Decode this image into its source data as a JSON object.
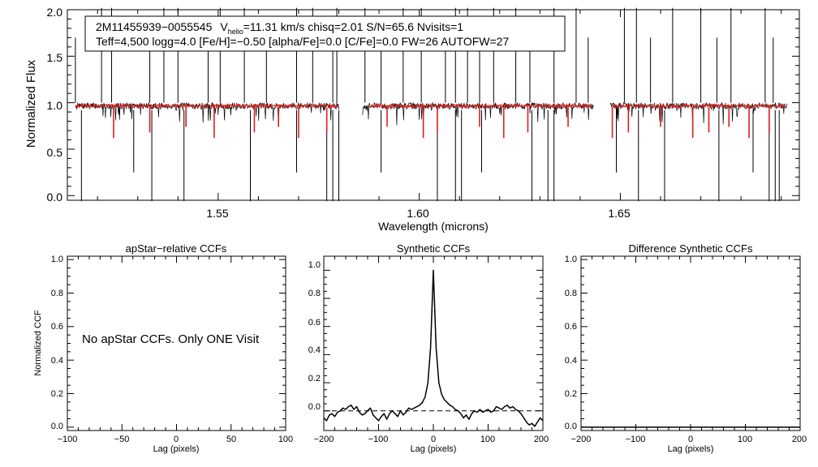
{
  "chart_data": [
    {
      "id": "spectrum",
      "type": "line",
      "xlabel": "Wavelength (microns)",
      "ylabel": "Normalized Flux",
      "xlim": [
        1.5125,
        1.6945
      ],
      "ylim": [
        -0.05,
        2.0
      ],
      "xticks": [
        1.55,
        1.6,
        1.65
      ],
      "xtick_labels": [
        "1.55",
        "1.60",
        "1.65"
      ],
      "yticks": [
        0.0,
        0.5,
        1.0,
        1.5,
        2.0
      ],
      "ytick_labels": [
        "0.0",
        "0.5",
        "1.0",
        "1.5",
        "2.0"
      ],
      "info": {
        "line1_id": "2M11455939−0055545",
        "line1_v": "V",
        "line1_sub": "helio",
        "line1_rest": "=11.31 km/s  chisq=2.01  S/N=65.6  Nvisits=1",
        "line2": "Teff=4,500 logg=4.0 [Fe/H]=−0.50 [alpha/Fe]=0.0 [C/Fe]=0.0 FW=26 AUTOFW=27"
      },
      "chips": [
        [
          1.5145,
          1.5802
        ],
        [
          1.5858,
          1.6433
        ],
        [
          1.6474,
          1.6915
        ]
      ],
      "model_chips": [
        [
          1.5145,
          1.58
        ],
        [
          1.5875,
          1.643
        ],
        [
          1.648,
          1.691
        ]
      ],
      "series": [
        {
          "name": "Observed spectrum",
          "color": "#000000"
        },
        {
          "name": "Synthetic best fit",
          "color": "#dc1e1e"
        }
      ],
      "spikes": [
        1.5145,
        1.521,
        1.5235,
        1.533,
        1.5365,
        1.54,
        1.5475,
        1.5505,
        1.5565,
        1.562,
        1.5695,
        1.5735,
        1.5785,
        1.5795,
        1.5865,
        1.5905,
        1.596,
        1.6005,
        1.6065,
        1.609,
        1.612,
        1.615,
        1.6185,
        1.624,
        1.6275,
        1.6335,
        1.639,
        1.642,
        1.651,
        1.654,
        1.6575,
        1.663,
        1.67,
        1.674,
        1.6775,
        1.686,
        1.688
      ],
      "dips": [
        1.516,
        1.529,
        1.5335,
        1.5415,
        1.558,
        1.5695,
        1.577,
        1.5785,
        1.58,
        1.5905,
        1.6045,
        1.609,
        1.6105,
        1.6155,
        1.628,
        1.632,
        1.6335,
        1.649,
        1.6545,
        1.661,
        1.6745,
        1.683,
        1.687,
        1.6885,
        1.6895
      ],
      "abs_lines": [
        1.524,
        1.533,
        1.542,
        1.549,
        1.559,
        1.565,
        1.57,
        1.577,
        1.592,
        1.601,
        1.6045,
        1.615,
        1.621,
        1.627,
        1.637,
        1.648,
        1.652,
        1.66,
        1.668,
        1.672,
        1.677,
        1.682,
        1.687
      ]
    },
    {
      "id": "apstar-ccf",
      "type": "line",
      "title": "apStar−relative CCFs",
      "xlabel": "Lag (pixels)",
      "ylabel": "Normalized CCF",
      "xlim": [
        -100,
        100
      ],
      "ylim": [
        -0.02,
        1.02
      ],
      "xtick_labels": [
        "−100",
        "−50",
        "0",
        "50",
        "100"
      ],
      "ytick_labels": [
        "0.0",
        "0.2",
        "0.4",
        "0.6",
        "0.8",
        "1.0"
      ],
      "annotation": "No apStar CCFs.  Only ONE Visit",
      "series": []
    },
    {
      "id": "synthetic-ccf",
      "type": "line",
      "title": "Synthetic CCFs",
      "xlabel": "Lag (pixels)",
      "xlim": [
        -200,
        200
      ],
      "ylim": [
        -0.14,
        1.1
      ],
      "xtick_labels": [
        "−200",
        "−100",
        "0",
        "100",
        "200"
      ],
      "ytick_labels": [
        "0.0",
        "0.2",
        "0.4",
        "0.6",
        "0.8",
        "1.0"
      ],
      "baseline": 0.0,
      "series": [
        {
          "name": "Synthetic CCF",
          "x": [
            -200,
            -195,
            -190,
            -185,
            -180,
            -175,
            -170,
            -165,
            -160,
            -155,
            -150,
            -145,
            -140,
            -135,
            -130,
            -125,
            -120,
            -115,
            -110,
            -105,
            -100,
            -95,
            -90,
            -85,
            -80,
            -75,
            -70,
            -65,
            -60,
            -55,
            -50,
            -45,
            -40,
            -35,
            -30,
            -25,
            -20,
            -15,
            -10,
            -5,
            0,
            5,
            10,
            15,
            20,
            25,
            30,
            35,
            40,
            45,
            50,
            55,
            60,
            65,
            70,
            75,
            80,
            85,
            90,
            95,
            100,
            105,
            110,
            115,
            120,
            125,
            130,
            135,
            140,
            145,
            150,
            155,
            160,
            165,
            170,
            175,
            180,
            185,
            190,
            195,
            200
          ],
          "y": [
            -0.05,
            -0.07,
            -0.03,
            -0.02,
            -0.04,
            -0.01,
            0.0,
            0.02,
            0.01,
            0.03,
            0.04,
            0.01,
            0.03,
            -0.01,
            -0.03,
            -0.02,
            0.0,
            0.02,
            -0.03,
            -0.05,
            -0.07,
            -0.04,
            -0.02,
            -0.06,
            -0.02,
            0.0,
            -0.02,
            -0.04,
            0.0,
            -0.03,
            -0.01,
            0.02,
            0.01,
            0.02,
            0.03,
            0.04,
            0.06,
            0.1,
            0.2,
            0.45,
            1.0,
            0.45,
            0.2,
            0.12,
            0.08,
            0.06,
            0.04,
            0.03,
            0.01,
            0.0,
            -0.02,
            -0.05,
            -0.03,
            -0.06,
            -0.02,
            0.0,
            -0.01,
            0.01,
            -0.01,
            0.0,
            0.01,
            -0.01,
            0.0,
            0.03,
            0.02,
            0.01,
            0.03,
            0.04,
            0.02,
            0.03,
            0.01,
            0.0,
            -0.02,
            -0.05,
            -0.08,
            -0.1,
            -0.09,
            -0.11,
            -0.08,
            -0.05,
            -0.07
          ]
        }
      ]
    },
    {
      "id": "difference-ccf",
      "type": "line",
      "title": "Difference Synthetic CCFs",
      "xlabel": "Lag (pixels)",
      "xlim": [
        -200,
        200
      ],
      "ylim": [
        -0.02,
        1.02
      ],
      "xtick_labels": [
        "−200",
        "−100",
        "0",
        "100",
        "200"
      ],
      "ytick_labels": [
        "0.0",
        "0.2",
        "0.4",
        "0.6",
        "0.8",
        "1.0"
      ],
      "series": [
        {
          "name": "Difference CCF",
          "x": [
            -200,
            200
          ],
          "y": [
            0.0,
            0.0
          ]
        }
      ]
    }
  ]
}
